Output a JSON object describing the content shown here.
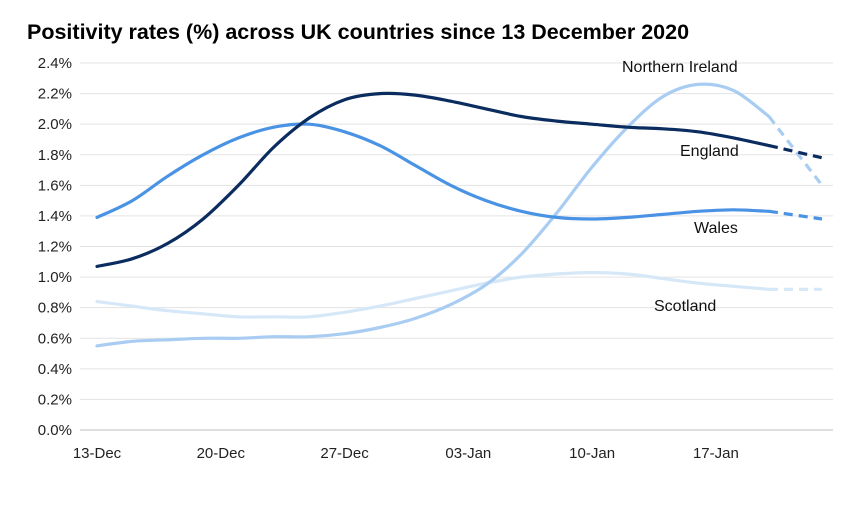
{
  "chart_data": {
    "type": "line",
    "title": "Positivity rates (%) across UK countries since 13 December 2020",
    "xlabel": "",
    "ylabel": "",
    "x_ticks": [
      "13-Dec",
      "20-Dec",
      "27-Dec",
      "03-Jan",
      "10-Jan",
      "17-Jan"
    ],
    "x_range": [
      "2020-12-13",
      "2021-01-23"
    ],
    "ylim": [
      0,
      2.4
    ],
    "y_ticks": [
      0,
      0.2,
      0.4,
      0.6,
      0.8,
      1.0,
      1.2,
      1.4,
      1.6,
      1.8,
      2.0,
      2.2,
      2.4
    ],
    "y_tick_labels": [
      "0.0%",
      "0.2%",
      "0.4%",
      "0.6%",
      "0.8%",
      "1.0%",
      "1.2%",
      "1.4%",
      "1.6%",
      "1.8%",
      "2.0%",
      "2.2%",
      "2.4%"
    ],
    "grid": true,
    "legend": "inline labels",
    "series": [
      {
        "name": "England",
        "color": "#0b2c5f",
        "x": [
          "2020-12-13",
          "2020-12-15",
          "2020-12-17",
          "2020-12-19",
          "2020-12-21",
          "2020-12-23",
          "2020-12-25",
          "2020-12-27",
          "2020-12-29",
          "2020-12-31",
          "2021-01-02",
          "2021-01-04",
          "2021-01-06",
          "2021-01-08",
          "2021-01-10",
          "2021-01-12",
          "2021-01-14",
          "2021-01-16",
          "2021-01-18",
          "2021-01-20",
          "2021-01-23"
        ],
        "values": [
          1.07,
          1.12,
          1.22,
          1.38,
          1.6,
          1.85,
          2.04,
          2.16,
          2.2,
          2.19,
          2.15,
          2.1,
          2.05,
          2.02,
          2.0,
          1.98,
          1.97,
          1.95,
          1.91,
          1.86,
          1.78
        ],
        "dashed_from": "2021-01-20"
      },
      {
        "name": "Wales",
        "color": "#4a93e4",
        "x": [
          "2020-12-13",
          "2020-12-15",
          "2020-12-17",
          "2020-12-19",
          "2020-12-21",
          "2020-12-23",
          "2020-12-25",
          "2020-12-27",
          "2020-12-29",
          "2020-12-31",
          "2021-01-02",
          "2021-01-04",
          "2021-01-06",
          "2021-01-08",
          "2021-01-10",
          "2021-01-12",
          "2021-01-14",
          "2021-01-16",
          "2021-01-18",
          "2021-01-20",
          "2021-01-23"
        ],
        "values": [
          1.39,
          1.5,
          1.66,
          1.8,
          1.91,
          1.98,
          2.0,
          1.95,
          1.86,
          1.73,
          1.6,
          1.5,
          1.43,
          1.39,
          1.38,
          1.39,
          1.41,
          1.43,
          1.44,
          1.43,
          1.38
        ],
        "dashed_from": "2021-01-20"
      },
      {
        "name": "Northern Ireland",
        "color": "#a9cdf2",
        "x": [
          "2020-12-13",
          "2020-12-15",
          "2020-12-17",
          "2020-12-19",
          "2020-12-21",
          "2020-12-23",
          "2020-12-25",
          "2020-12-27",
          "2020-12-29",
          "2020-12-31",
          "2021-01-02",
          "2021-01-04",
          "2021-01-06",
          "2021-01-08",
          "2021-01-10",
          "2021-01-12",
          "2021-01-14",
          "2021-01-16",
          "2021-01-18",
          "2021-01-20",
          "2021-01-23"
        ],
        "values": [
          0.55,
          0.58,
          0.59,
          0.6,
          0.6,
          0.61,
          0.61,
          0.63,
          0.67,
          0.73,
          0.82,
          0.95,
          1.15,
          1.42,
          1.72,
          1.98,
          2.18,
          2.26,
          2.22,
          2.05,
          1.6
        ],
        "dashed_from": "2021-01-20"
      },
      {
        "name": "Scotland",
        "color": "#d6e8f8",
        "x": [
          "2020-12-13",
          "2020-12-15",
          "2020-12-17",
          "2020-12-19",
          "2020-12-21",
          "2020-12-23",
          "2020-12-25",
          "2020-12-27",
          "2020-12-29",
          "2020-12-31",
          "2021-01-02",
          "2021-01-04",
          "2021-01-06",
          "2021-01-08",
          "2021-01-10",
          "2021-01-12",
          "2021-01-14",
          "2021-01-16",
          "2021-01-18",
          "2021-01-20",
          "2021-01-23"
        ],
        "values": [
          0.84,
          0.81,
          0.78,
          0.76,
          0.74,
          0.74,
          0.74,
          0.77,
          0.81,
          0.86,
          0.91,
          0.96,
          1.0,
          1.02,
          1.03,
          1.02,
          0.99,
          0.96,
          0.94,
          0.92,
          0.92
        ],
        "dashed_from": "2021-01-20"
      }
    ],
    "annotations": [
      {
        "text": "Northern Ireland",
        "series": "Northern Ireland"
      },
      {
        "text": "England",
        "series": "England"
      },
      {
        "text": "Wales",
        "series": "Wales"
      },
      {
        "text": "Scotland",
        "series": "Scotland"
      }
    ]
  }
}
